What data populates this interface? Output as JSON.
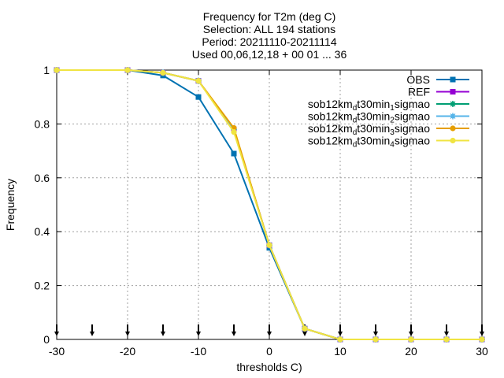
{
  "chart_data": {
    "type": "line",
    "title_lines": [
      "Frequency  for T2m (deg C)",
      "Selection: ALL    194 stations",
      "Period: 20211110-20211114",
      "Used 00,06,12,18 + 00 01 ... 36"
    ],
    "xlabel": "thresholds C)",
    "ylabel": "Frequency",
    "xlim": [
      -30,
      30
    ],
    "ylim": [
      0,
      1
    ],
    "x_ticks": [
      -30,
      -20,
      -10,
      0,
      10,
      20,
      30
    ],
    "y_ticks": [
      0,
      0.2,
      0.4,
      0.6,
      0.8,
      1
    ],
    "y_tick_labels": [
      "0",
      "0.2",
      "0.4",
      "0.6",
      "0.8",
      "1"
    ],
    "grid": true,
    "legend_position": "top-right",
    "threshold_markers_x": [
      -30,
      -25,
      -20,
      -15,
      -10,
      -5,
      0,
      5,
      10,
      15,
      20,
      25,
      30
    ],
    "x": [
      -30,
      -20,
      -15,
      -10,
      -5,
      0,
      5,
      10,
      15,
      20,
      25,
      30
    ],
    "series": [
      {
        "name": "OBS",
        "legend_parts": [
          {
            "t": "OBS"
          }
        ],
        "color": "#0072b2",
        "marker": "square",
        "values": [
          1.0,
          1.0,
          0.98,
          0.9,
          0.69,
          0.34,
          0.04,
          0.0,
          0.0,
          0.0,
          0.0,
          0.0
        ]
      },
      {
        "name": "REF",
        "legend_parts": [
          {
            "t": "REF"
          }
        ],
        "color": "#9400d3",
        "marker": "square",
        "values": [
          1.0,
          1.0,
          0.99,
          0.96,
          0.78,
          0.35,
          0.04,
          0.0,
          0.0,
          0.0,
          0.0,
          0.0
        ]
      },
      {
        "name": "sob12km_dt30min_1sigmao",
        "legend_parts": [
          {
            "t": "sob12km"
          },
          {
            "t": "d",
            "sub": true
          },
          {
            "t": "t30min"
          },
          {
            "t": "1",
            "sub": true
          },
          {
            "t": "sigmao"
          }
        ],
        "color": "#009e73",
        "marker": "star",
        "values": [
          1.0,
          1.0,
          0.99,
          0.96,
          0.78,
          0.35,
          0.04,
          0.0,
          0.0,
          0.0,
          0.0,
          0.0
        ]
      },
      {
        "name": "sob12km_dt30min_2sigmao",
        "legend_parts": [
          {
            "t": "sob12km"
          },
          {
            "t": "d",
            "sub": true
          },
          {
            "t": "t30min"
          },
          {
            "t": "2",
            "sub": true
          },
          {
            "t": "sigmao"
          }
        ],
        "color": "#56b4e9",
        "marker": "star",
        "values": [
          1.0,
          1.0,
          0.99,
          0.96,
          0.78,
          0.35,
          0.04,
          0.0,
          0.0,
          0.0,
          0.0,
          0.0
        ]
      },
      {
        "name": "sob12km_dt30min_3sigmao",
        "legend_parts": [
          {
            "t": "sob12km"
          },
          {
            "t": "d",
            "sub": true
          },
          {
            "t": "t30min"
          },
          {
            "t": "3",
            "sub": true
          },
          {
            "t": "sigmao"
          }
        ],
        "color": "#e69f00",
        "marker": "circle",
        "values": [
          1.0,
          1.0,
          0.99,
          0.96,
          0.785,
          0.35,
          0.04,
          0.0,
          0.0,
          0.0,
          0.0,
          0.0
        ]
      },
      {
        "name": "sob12km_dt30min_4sigmao",
        "legend_parts": [
          {
            "t": "sob12km"
          },
          {
            "t": "d",
            "sub": true
          },
          {
            "t": "t30min"
          },
          {
            "t": "4",
            "sub": true
          },
          {
            "t": "sigmao"
          }
        ],
        "color": "#f0e442",
        "marker": "circle",
        "values": [
          1.0,
          1.0,
          0.99,
          0.96,
          0.77,
          0.35,
          0.04,
          0.0,
          0.0,
          0.0,
          0.0,
          0.0
        ]
      }
    ]
  }
}
